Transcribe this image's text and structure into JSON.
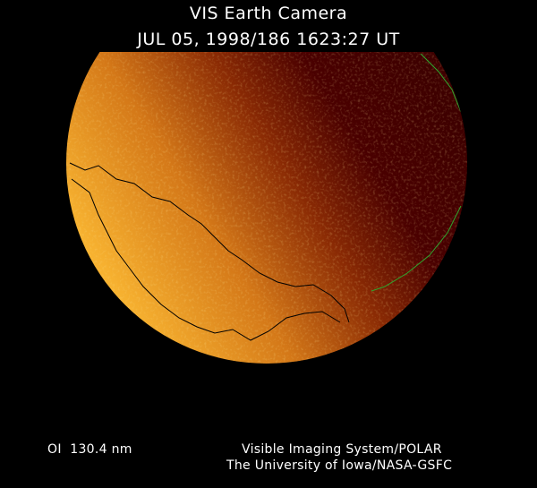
{
  "title": "VIS Earth Camera",
  "timestamp": "JUL 05, 1998/186 1623:27 UT",
  "wavelength": "OI  130.4 nm",
  "credit_line1": "Visible Imaging System/POLAR",
  "credit_line2": "The University of Iowa/NASA-GSFC",
  "colors": {
    "bright": "#f7b230",
    "mid": "#c0600a",
    "dark": "#4a0000",
    "coastline": "#000000",
    "grid": "#2ea82e"
  }
}
